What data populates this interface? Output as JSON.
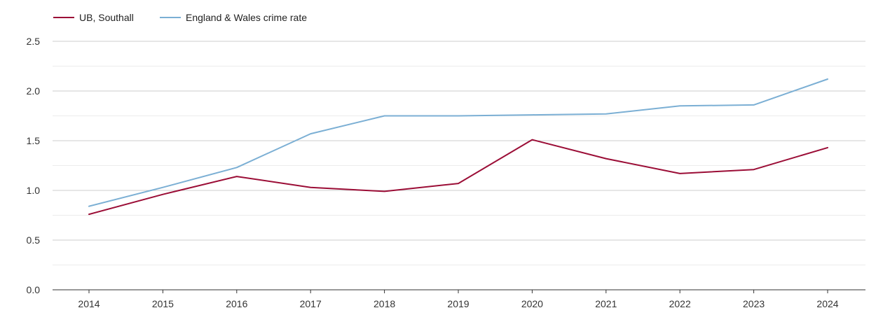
{
  "chart_data": {
    "type": "line",
    "x": [
      "2014",
      "2015",
      "2016",
      "2017",
      "2018",
      "2019",
      "2020",
      "2021",
      "2022",
      "2023",
      "2024"
    ],
    "series": [
      {
        "name": "UB, Southall",
        "color": "#9b0d36",
        "values": [
          0.76,
          0.96,
          1.14,
          1.03,
          0.99,
          1.07,
          1.51,
          1.32,
          1.17,
          1.21,
          1.43
        ]
      },
      {
        "name": "England & Wales crime rate",
        "color": "#7bafd4",
        "values": [
          0.84,
          1.03,
          1.23,
          1.57,
          1.75,
          1.75,
          1.76,
          1.77,
          1.85,
          1.86,
          2.12
        ]
      }
    ],
    "yticks": [
      "0.0",
      "0.5",
      "1.0",
      "1.5",
      "2.0",
      "2.5"
    ],
    "ylim": [
      0,
      2.5
    ],
    "grid": true,
    "legend_position": "top-left",
    "title": "",
    "xlabel": "",
    "ylabel": ""
  }
}
